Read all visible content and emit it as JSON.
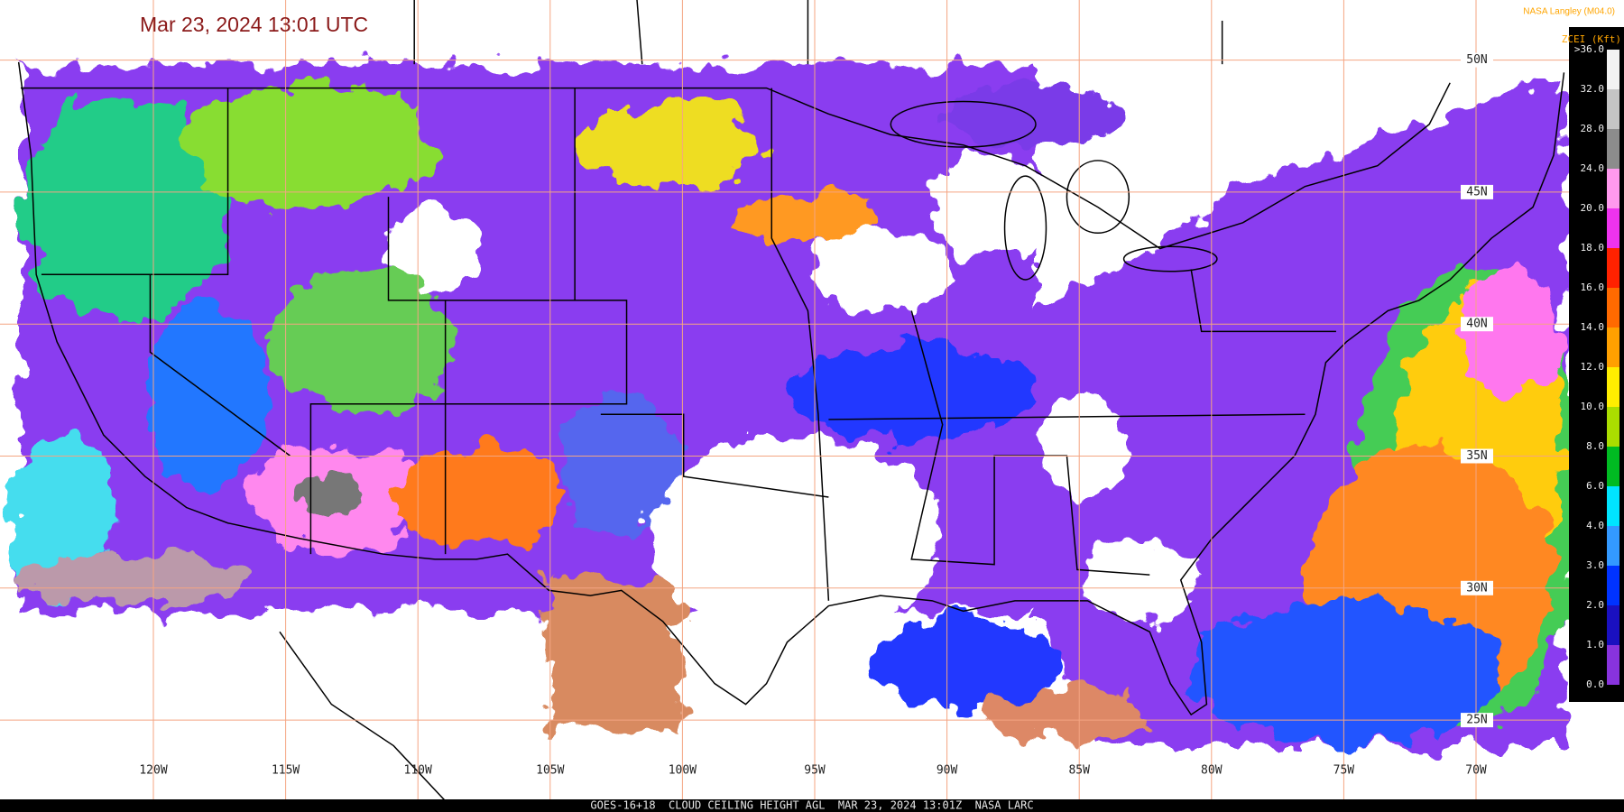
{
  "header": {
    "title": "Mar 23, 2024 13:01 UTC",
    "credit": "NASA Langley (M04.0)"
  },
  "colorbar": {
    "title": "ZCEI (Kft)",
    "labels": [
      ">36.0",
      "32.0",
      "28.0",
      "24.0",
      "20.0",
      "18.0",
      "16.0",
      "14.0",
      "12.0",
      "10.0",
      "8.0",
      "6.0",
      "4.0",
      "3.0",
      "2.0",
      "1.0",
      "0.0"
    ]
  },
  "grid": {
    "longitudes": [
      "120W",
      "115W",
      "110W",
      "105W",
      "100W",
      "95W",
      "90W",
      "85W",
      "80W",
      "75W",
      "70W"
    ],
    "latitudes": [
      "50N",
      "45N",
      "40N",
      "35N",
      "30N",
      "25N"
    ]
  },
  "footer": "GOES-16+18  CLOUD CEILING HEIGHT AGL  MAR 23, 2024 13:01Z  NASA LARC"
}
